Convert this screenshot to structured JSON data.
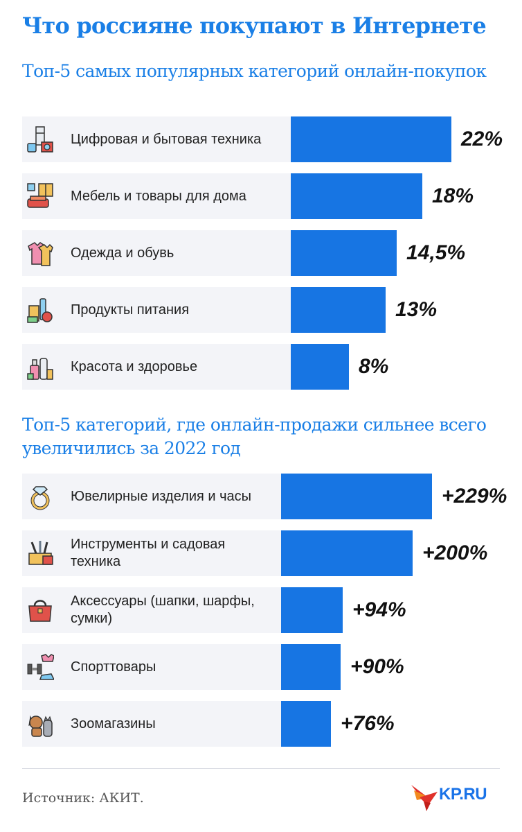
{
  "header": {
    "title": "Что россияне покупают в Интернете"
  },
  "chart_data": [
    {
      "type": "bar",
      "title": "Топ-5 самых популярных категорий онлайн-покупок",
      "categories": [
        "Цифровая и бытовая техника",
        "Мебель и товары для дома",
        "Одежда и обувь",
        "Продукты питания",
        "Красота и здоровье"
      ],
      "values": [
        22,
        18,
        14.5,
        13,
        8
      ],
      "value_labels": [
        "22%",
        "18%",
        "14,5%",
        "13%",
        "8%"
      ],
      "icons": [
        "appliances-icon",
        "furniture-icon",
        "clothes-icon",
        "groceries-icon",
        "cosmetics-icon"
      ],
      "unit": "%",
      "orientation": "horizontal",
      "grid": false,
      "xlim": [
        0,
        22
      ]
    },
    {
      "type": "bar",
      "title": "Топ-5 категорий, где онлайн-продажи сильнее всего увеличились за 2022 год",
      "categories": [
        "Ювелирные изделия и часы",
        "Инструменты и садовая техника",
        "Аксессуары (шапки, шарфы, сумки)",
        "Спорттовары",
        "Зоомагазины"
      ],
      "values": [
        229,
        200,
        94,
        90,
        76
      ],
      "value_labels": [
        "+229%",
        "+200%",
        "+94%",
        "+90%",
        "+76%"
      ],
      "icons": [
        "ring-icon",
        "tools-icon",
        "handbag-icon",
        "sports-icon",
        "pets-icon"
      ],
      "unit": "%",
      "orientation": "horizontal",
      "grid": false,
      "xlim": [
        0,
        229
      ]
    }
  ],
  "footer": {
    "source": "Источник: АКИТ.",
    "logo_text": "KP.RU"
  },
  "colors": {
    "accent": "#1a7fe6",
    "bar": "#1775e3",
    "row_background": "#f3f4f8"
  }
}
